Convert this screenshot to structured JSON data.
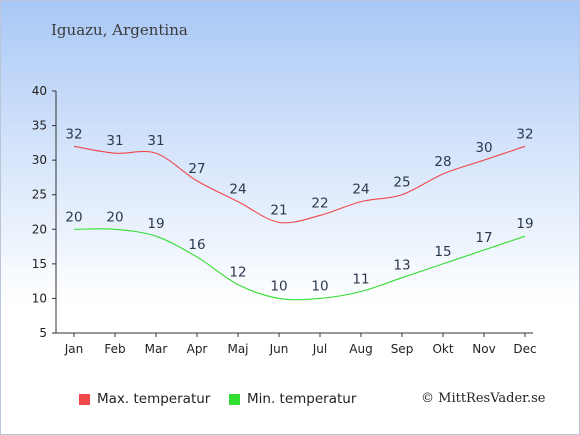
{
  "header": {
    "title": "Iguazu, Argentina"
  },
  "chart_data": {
    "type": "line",
    "categories": [
      "Jan",
      "Feb",
      "Mar",
      "Apr",
      "Maj",
      "Jun",
      "Jul",
      "Aug",
      "Sep",
      "Okt",
      "Nov",
      "Dec"
    ],
    "y_ticks": [
      5,
      10,
      15,
      20,
      25,
      30,
      35,
      40
    ],
    "ylim": [
      5,
      40
    ],
    "grid": false,
    "legend_position": "bottom-left",
    "series": [
      {
        "name": "Max. temperatur",
        "color": "#f0474b",
        "values": [
          32,
          31,
          31,
          27,
          24,
          21,
          22,
          24,
          25,
          28,
          30,
          32
        ]
      },
      {
        "name": "Min. temperatur",
        "color": "#33dd33",
        "values": [
          20,
          20,
          19,
          16,
          12,
          10,
          10,
          11,
          13,
          15,
          17,
          19
        ]
      }
    ]
  },
  "footer": {
    "credit": "© MittResVader.se"
  }
}
